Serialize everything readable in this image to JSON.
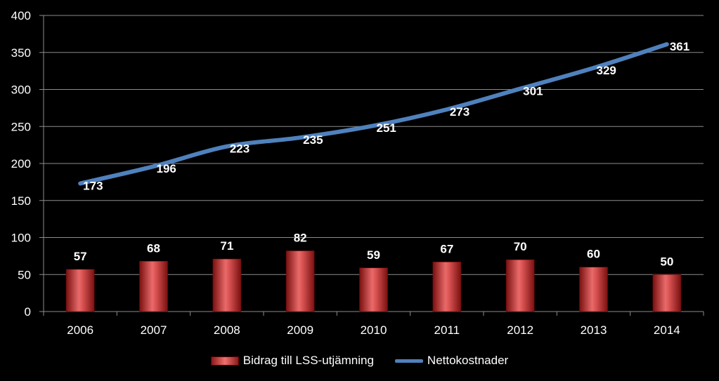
{
  "chart_data": {
    "type": "bar+line",
    "title": "",
    "xlabel": "",
    "ylabel": "",
    "ylim": [
      0,
      400
    ],
    "yticks": [
      0,
      50,
      100,
      150,
      200,
      250,
      300,
      350,
      400
    ],
    "grid": true,
    "legend_position": "bottom",
    "categories": [
      "2006",
      "2007",
      "2008",
      "2009",
      "2010",
      "2011",
      "2012",
      "2013",
      "2014"
    ],
    "series": [
      {
        "name": "Bidrag till LSS-utjämning",
        "type": "bar",
        "color": "#c0504d",
        "values": [
          57,
          68,
          71,
          82,
          59,
          67,
          70,
          60,
          50
        ]
      },
      {
        "name": "Nettokostnader",
        "type": "line",
        "color": "#4f81bd",
        "values": [
          173,
          196,
          223,
          235,
          251,
          273,
          301,
          329,
          361
        ]
      }
    ]
  }
}
